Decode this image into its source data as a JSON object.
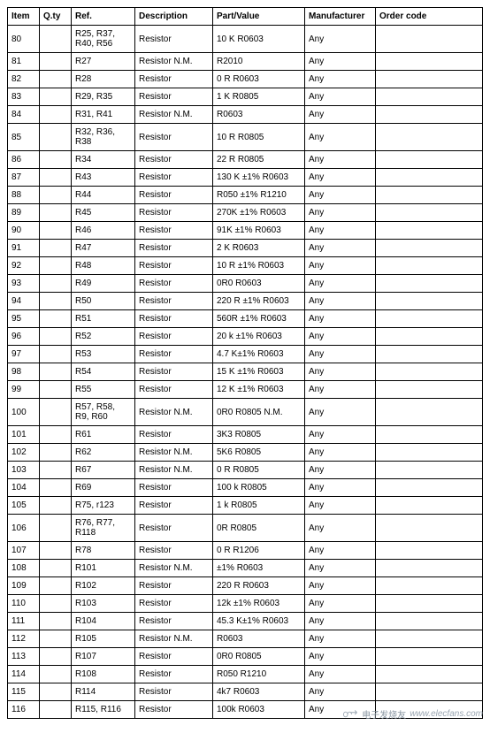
{
  "table": {
    "columns": [
      "Item",
      "Q.ty",
      "Ref.",
      "Description",
      "Part/Value",
      "Manufacturer",
      "Order code"
    ],
    "rows": [
      [
        "80",
        "",
        "R25, R37, R40, R56",
        "Resistor",
        "10 K R0603",
        "Any",
        ""
      ],
      [
        "81",
        "",
        "R27",
        "Resistor N.M.",
        "R2010",
        "Any",
        ""
      ],
      [
        "82",
        "",
        "R28",
        "Resistor",
        "0 R R0603",
        "Any",
        ""
      ],
      [
        "83",
        "",
        "R29, R35",
        "Resistor",
        "1 K R0805",
        "Any",
        ""
      ],
      [
        "84",
        "",
        "R31, R41",
        "Resistor N.M.",
        "R0603",
        "Any",
        ""
      ],
      [
        "85",
        "",
        "R32, R36, R38",
        "Resistor",
        "10 R R0805",
        "Any",
        ""
      ],
      [
        "86",
        "",
        "R34",
        "Resistor",
        "22 R R0805",
        "Any",
        ""
      ],
      [
        "87",
        "",
        "R43",
        "Resistor",
        "130 K ±1% R0603",
        "Any",
        ""
      ],
      [
        "88",
        "",
        "R44",
        "Resistor",
        "R050 ±1% R1210",
        "Any",
        ""
      ],
      [
        "89",
        "",
        "R45",
        "Resistor",
        "270K ±1% R0603",
        "Any",
        ""
      ],
      [
        "90",
        "",
        "R46",
        "Resistor",
        "91K ±1% R0603",
        "Any",
        ""
      ],
      [
        "91",
        "",
        "R47",
        "Resistor",
        "2 K R0603",
        "Any",
        ""
      ],
      [
        "92",
        "",
        "R48",
        "Resistor",
        "10 R ±1% R0603",
        "Any",
        ""
      ],
      [
        "93",
        "",
        "R49",
        "Resistor",
        "0R0 R0603",
        "Any",
        ""
      ],
      [
        "94",
        "",
        "R50",
        "Resistor",
        "220 R ±1% R0603",
        "Any",
        ""
      ],
      [
        "95",
        "",
        "R51",
        "Resistor",
        "560R ±1% R0603",
        "Any",
        ""
      ],
      [
        "96",
        "",
        "R52",
        "Resistor",
        "20 k ±1% R0603",
        "Any",
        ""
      ],
      [
        "97",
        "",
        "R53",
        "Resistor",
        "4.7 K±1% R0603",
        "Any",
        ""
      ],
      [
        "98",
        "",
        "R54",
        "Resistor",
        "15 K ±1% R0603",
        "Any",
        ""
      ],
      [
        "99",
        "",
        "R55",
        "Resistor",
        "12 K ±1% R0603",
        "Any",
        ""
      ],
      [
        "100",
        "",
        "R57, R58, R9, R60",
        "Resistor N.M.",
        "0R0 R0805 N.M.",
        "Any",
        ""
      ],
      [
        "101",
        "",
        "R61",
        "Resistor",
        "3K3 R0805",
        "Any",
        ""
      ],
      [
        "102",
        "",
        "R62",
        "Resistor N.M.",
        "5K6 R0805",
        "Any",
        ""
      ],
      [
        "103",
        "",
        "R67",
        "Resistor N.M.",
        "0 R R0805",
        "Any",
        ""
      ],
      [
        "104",
        "",
        "R69",
        "Resistor",
        "100 k R0805",
        "Any",
        ""
      ],
      [
        "105",
        "",
        "R75, r123",
        "Resistor",
        "1 k R0805",
        "Any",
        ""
      ],
      [
        "106",
        "",
        "R76, R77, R118",
        "Resistor",
        "0R R0805",
        "Any",
        ""
      ],
      [
        "107",
        "",
        "R78",
        "Resistor",
        "0 R R1206",
        "Any",
        ""
      ],
      [
        "108",
        "",
        "R101",
        "Resistor N.M.",
        "±1% R0603",
        "Any",
        ""
      ],
      [
        "109",
        "",
        "R102",
        "Resistor",
        "220 R R0603",
        "Any",
        ""
      ],
      [
        "110",
        "",
        "R103",
        "Resistor",
        "12k ±1% R0603",
        "Any",
        ""
      ],
      [
        "111",
        "",
        "R104",
        "Resistor",
        "45.3 K±1% R0603",
        "Any",
        ""
      ],
      [
        "112",
        "",
        "R105",
        "Resistor N.M.",
        "R0603",
        "Any",
        ""
      ],
      [
        "113",
        "",
        "R107",
        "Resistor",
        "0R0 R0805",
        "Any",
        ""
      ],
      [
        "114",
        "",
        "R108",
        "Resistor",
        "R050 R1210",
        "Any",
        ""
      ],
      [
        "115",
        "",
        "R114",
        "Resistor",
        "4k7 R0603",
        "Any",
        ""
      ],
      [
        "116",
        "",
        "R115, R116",
        "Resistor",
        "100k R0603",
        "Any",
        ""
      ]
    ]
  },
  "watermark": {
    "chinese": "电子发烧友",
    "url": "www.elecfans.com"
  }
}
